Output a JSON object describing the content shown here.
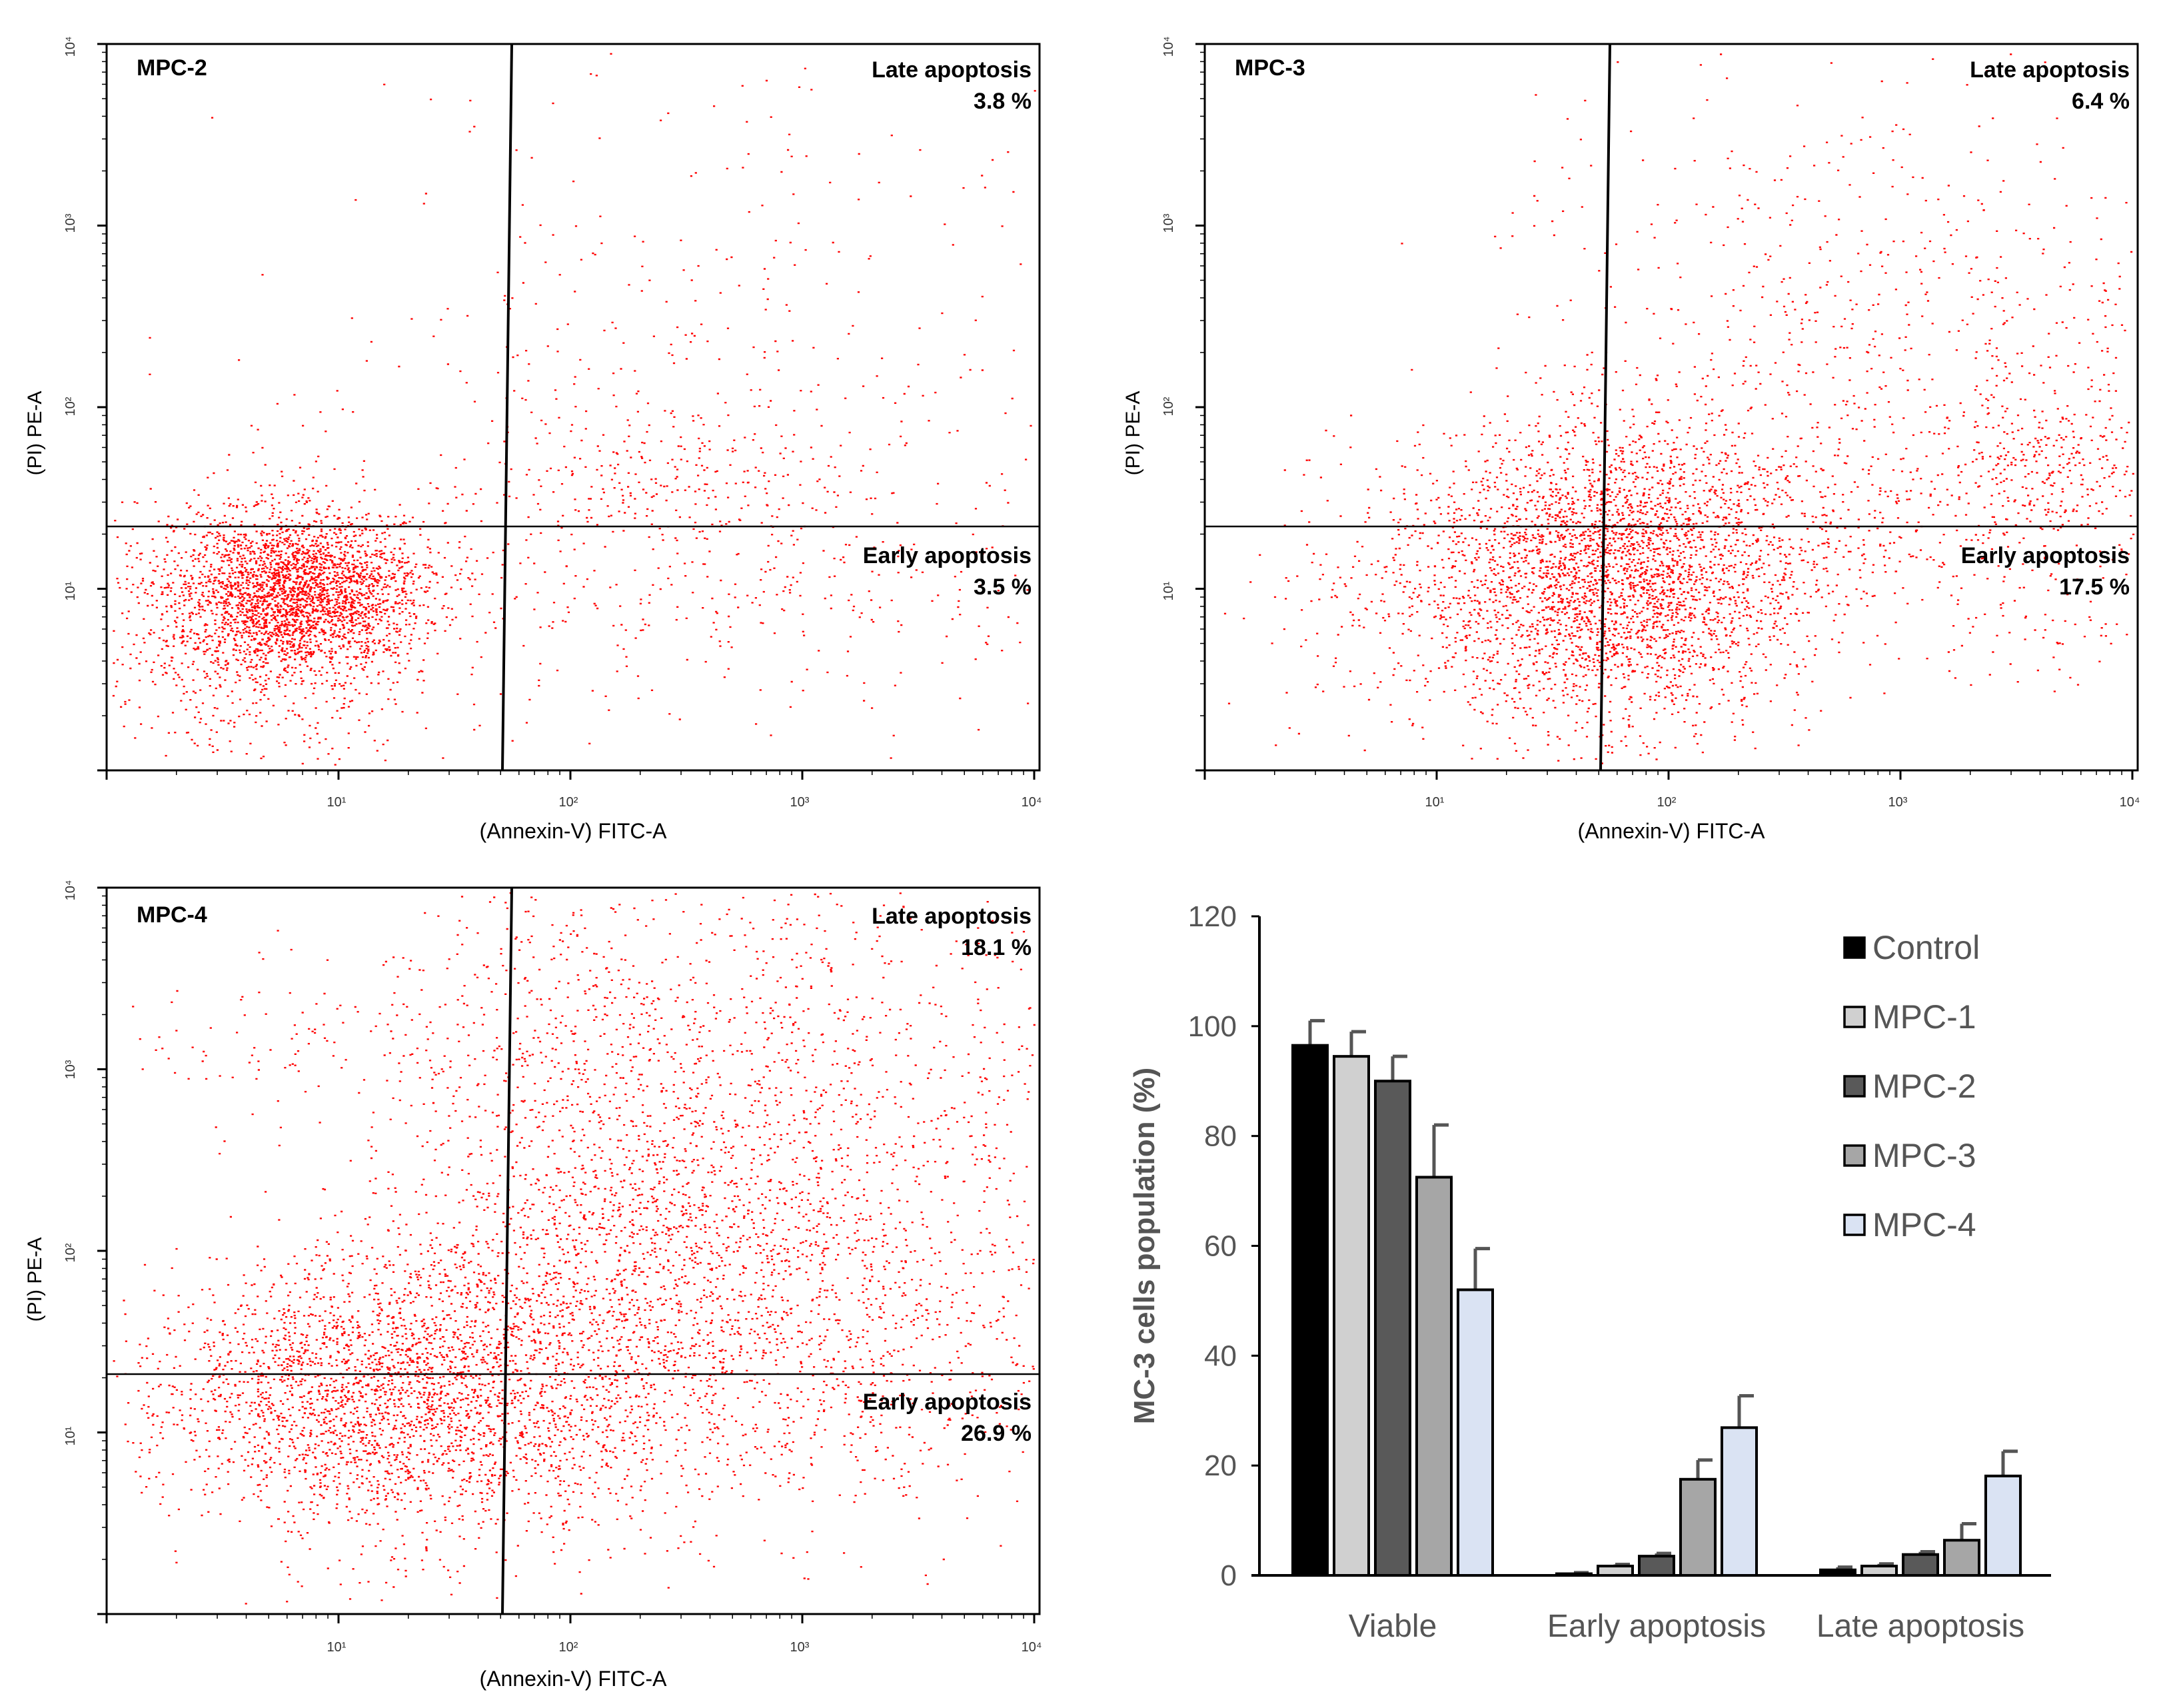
{
  "flow_panels": [
    {
      "sample": "MPC-2",
      "late_label": "Late apoptosis",
      "late_value": "3.8 %",
      "early_label": "Early apoptosis",
      "early_value": "3.5 %",
      "xlabel": "(Annexin-V) FITC-A",
      "ylabel": "(PI) PE-A",
      "x_ticks": [
        "10¹",
        "10²",
        "10³",
        "10⁴"
      ],
      "y_ticks": [
        "10¹",
        "10²",
        "10³",
        "10⁴"
      ],
      "dot_color": "#ff0000"
    },
    {
      "sample": "MPC-3",
      "late_label": "Late apoptosis",
      "late_value": "6.4 %",
      "early_label": "Early apoptosis",
      "early_value": "17.5 %",
      "xlabel": "(Annexin-V) FITC-A",
      "ylabel": "(PI) PE-A",
      "x_ticks": [
        "10¹",
        "10²",
        "10³",
        "10⁴"
      ],
      "y_ticks": [
        "10¹",
        "10²",
        "10³",
        "10⁴"
      ],
      "dot_color": "#ff0000"
    },
    {
      "sample": "MPC-4",
      "late_label": "Late apoptosis",
      "late_value": "18.1 %",
      "early_label": "Early apoptosis",
      "early_value": "26.9 %",
      "xlabel": "(Annexin-V) FITC-A",
      "ylabel": "(PI) PE-A",
      "x_ticks": [
        "10¹",
        "10²",
        "10³",
        "10⁴"
      ],
      "y_ticks": [
        "10¹",
        "10²",
        "10³",
        "10⁴"
      ],
      "dot_color": "#ff0000"
    }
  ],
  "chart_data": {
    "type": "bar",
    "title": "",
    "xlabel": "",
    "ylabel": "MC-3 cells population (%)",
    "ylim": [
      0,
      120
    ],
    "y_ticks": [
      0,
      20,
      40,
      60,
      80,
      100,
      120
    ],
    "categories": [
      "Viable",
      "Early apoptosis",
      "Late apoptosis"
    ],
    "series": [
      {
        "name": "Control",
        "color": "#000000",
        "values": [
          96.5,
          0.3,
          1.0
        ],
        "errors": [
          4.5,
          0.2,
          0.5
        ]
      },
      {
        "name": "MPC-1",
        "color": "#d0d0d0",
        "values": [
          94.5,
          1.7,
          1.7
        ],
        "errors": [
          4.5,
          0.3,
          0.4
        ]
      },
      {
        "name": "MPC-2",
        "color": "#595959",
        "values": [
          90.0,
          3.5,
          3.8
        ],
        "errors": [
          4.5,
          0.5,
          0.5
        ]
      },
      {
        "name": "MPC-3",
        "color": "#a6a6a6",
        "values": [
          72.5,
          17.5,
          6.4
        ],
        "errors": [
          9.5,
          3.5,
          3.0
        ]
      },
      {
        "name": "MPC-4",
        "color": "#dae3f3",
        "values": [
          52.0,
          26.9,
          18.1
        ],
        "errors": [
          7.5,
          5.8,
          4.5
        ]
      }
    ],
    "legend_position": "top-right"
  }
}
